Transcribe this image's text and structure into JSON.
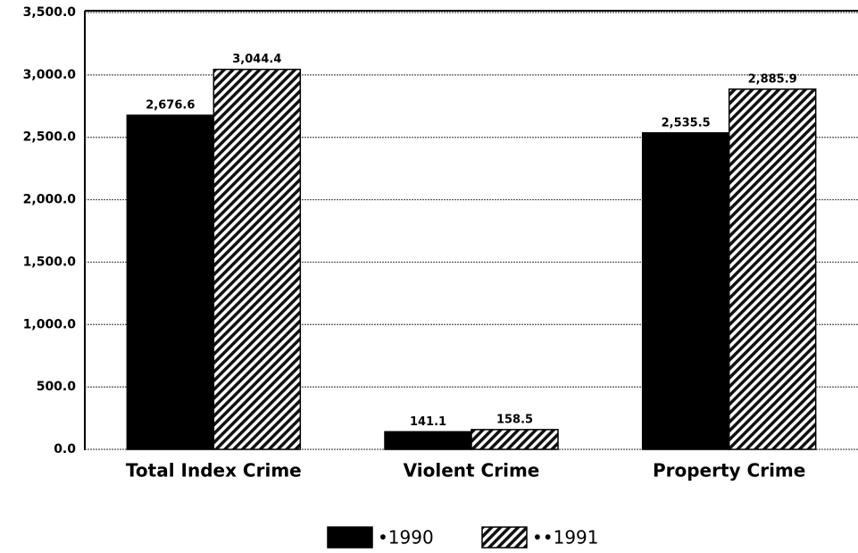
{
  "chart_data": {
    "type": "bar",
    "categories": [
      "Total Index Crime",
      "Violent Crime",
      "Property Crime"
    ],
    "series": [
      {
        "name": "•1990",
        "color": "#000000",
        "pattern": "solid",
        "values": [
          2676.6,
          141.1,
          2535.5
        ],
        "value_labels": [
          "2,676.6",
          "141.1",
          "2,535.5"
        ]
      },
      {
        "name": "••1991",
        "color": "#000000",
        "pattern": "hatch",
        "values": [
          3044.4,
          158.5,
          2885.9
        ],
        "value_labels": [
          "3,044.4",
          "158.5",
          "2,885.9"
        ]
      }
    ],
    "ylim": [
      0,
      3500
    ],
    "yticks": [
      {
        "value": 0,
        "label": "0.0"
      },
      {
        "value": 500,
        "label": "500.0"
      },
      {
        "value": 1000,
        "label": "1,000.0"
      },
      {
        "value": 1500,
        "label": "1,500.0"
      },
      {
        "value": 2000,
        "label": "2,000.0"
      },
      {
        "value": 2500,
        "label": "2,500.0"
      },
      {
        "value": 3000,
        "label": "3,000.0"
      },
      {
        "value": 3500,
        "label": "3,500.0"
      }
    ],
    "grid": true,
    "legend": "bottom"
  }
}
